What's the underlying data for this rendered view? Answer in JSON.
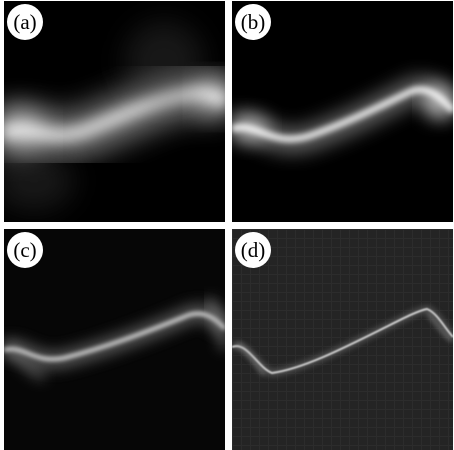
{
  "panels": [
    {
      "id": "a",
      "label": "(a)"
    },
    {
      "id": "b",
      "label": "(b)"
    },
    {
      "id": "c",
      "label": "(c)"
    },
    {
      "id": "d",
      "label": "(d)"
    }
  ],
  "colors": {
    "background": "#000000",
    "curve": "#ffffff",
    "divider": "#ffffff"
  }
}
